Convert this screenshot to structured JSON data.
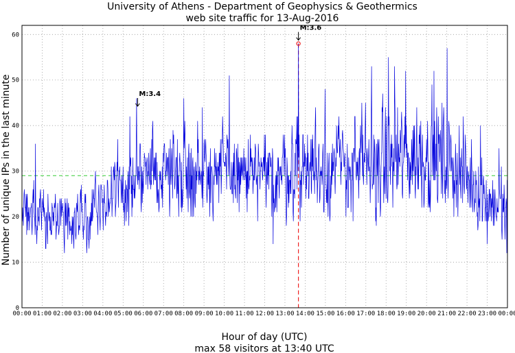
{
  "chart_data": {
    "type": "line",
    "title": "University of Athens - Department of Geophysics & Geothermics",
    "subtitle": "web site traffic for 13-Aug-2016",
    "xlabel": "Hour of day (UTC)",
    "xlabel_sub": "max 58 visitors at 13:40 UTC",
    "ylabel": "Number of unique IPs in the last minute",
    "xlim": [
      0,
      1440
    ],
    "ylim": [
      0,
      62
    ],
    "grid": true,
    "yticks": [
      0,
      10,
      20,
      30,
      40,
      50,
      60
    ],
    "xtick_labels": [
      "00:00",
      "01:00",
      "02:00",
      "03:00",
      "04:00",
      "05:00",
      "06:00",
      "07:00",
      "08:00",
      "09:00",
      "10:00",
      "11:00",
      "12:00",
      "13:00",
      "14:00",
      "15:00",
      "16:00",
      "17:00",
      "18:00",
      "19:00",
      "20:00",
      "21:00",
      "22:00",
      "23:00",
      "00:00"
    ],
    "mean_line": {
      "y": 29,
      "color": "#33cc33"
    },
    "max_marker": {
      "x": 820,
      "y": 58,
      "color": "#ee2222"
    },
    "series": [
      {
        "color": "#0000dd",
        "profile_x_minutes": [
          0,
          60,
          120,
          180,
          240,
          300,
          360,
          420,
          480,
          540,
          600,
          660,
          720,
          780,
          840,
          900,
          960,
          1020,
          1080,
          1140,
          1200,
          1260,
          1320,
          1380,
          1440
        ],
        "profile_mean": [
          21,
          20,
          19,
          20,
          22,
          28,
          29,
          30,
          31,
          30,
          30,
          29,
          28,
          30,
          31,
          31,
          31,
          31,
          32,
          33,
          34,
          32,
          29,
          24,
          21
        ],
        "profile_spread": [
          4,
          4,
          4,
          4,
          5,
          6,
          6,
          6,
          7,
          6,
          6,
          6,
          6,
          6,
          7,
          7,
          7,
          7,
          8,
          8,
          8,
          7,
          6,
          5,
          5
        ],
        "peaks": [
          {
            "x": 320,
            "y": 42
          },
          {
            "x": 340,
            "y": 46
          },
          {
            "x": 480,
            "y": 46
          },
          {
            "x": 535,
            "y": 44
          },
          {
            "x": 615,
            "y": 51
          },
          {
            "x": 818,
            "y": 42
          },
          {
            "x": 899,
            "y": 48
          },
          {
            "x": 1019,
            "y": 45
          },
          {
            "x": 1037,
            "y": 53
          },
          {
            "x": 1087,
            "y": 55
          },
          {
            "x": 1105,
            "y": 53
          },
          {
            "x": 1138,
            "y": 52
          },
          {
            "x": 1222,
            "y": 52
          },
          {
            "x": 1261,
            "y": 57
          },
          {
            "x": 745,
            "y": 14
          },
          {
            "x": 40,
            "y": 36
          },
          {
            "x": 14,
            "y": 16
          },
          {
            "x": 1380,
            "y": 14
          },
          {
            "x": 1438,
            "y": 12
          },
          {
            "x": 1415,
            "y": 35
          },
          {
            "x": 1360,
            "y": 40
          }
        ]
      }
    ],
    "annotations": [
      {
        "text": "M:3.4",
        "x": 343,
        "y": 46.5
      },
      {
        "text": "M:3.6",
        "x": 820,
        "y": 61.0
      }
    ]
  }
}
